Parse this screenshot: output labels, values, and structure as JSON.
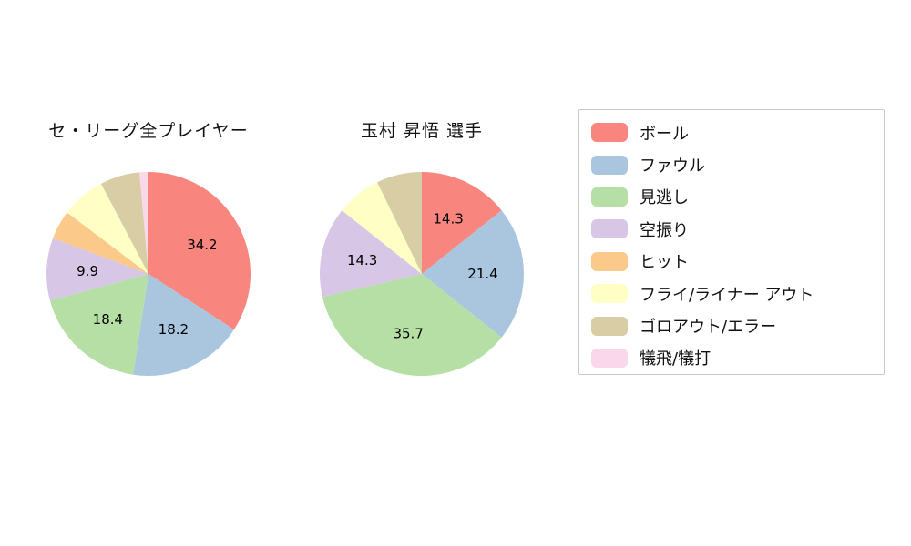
{
  "page": {
    "background_color": "#ffffff"
  },
  "legend": {
    "position": "right",
    "border_color": "#c9c9c9",
    "items": [
      {
        "label": "ボール",
        "color": "#f8867e"
      },
      {
        "label": "ファウル",
        "color": "#a9c6de"
      },
      {
        "label": "見逃し",
        "color": "#b5dfa5"
      },
      {
        "label": "空振り",
        "color": "#d7c6e6"
      },
      {
        "label": "ヒット",
        "color": "#fbc98a"
      },
      {
        "label": "フライ/ライナー アウト",
        "color": "#ffffc5"
      },
      {
        "label": "ゴロアウト/エラー",
        "color": "#d9cda6"
      },
      {
        "label": "犠飛/犠打",
        "color": "#fbd7eb"
      }
    ]
  },
  "chart_data": [
    {
      "type": "pie",
      "title": "セ・リーグ全プレイヤー",
      "categories": [
        "ボール",
        "ファウル",
        "見逃し",
        "空振り",
        "ヒット",
        "フライ/ライナー アウト",
        "ゴロアウト/エラー",
        "犠飛/犠打"
      ],
      "values": [
        34.2,
        18.2,
        18.4,
        9.9,
        4.6,
        7.0,
        6.3,
        1.4
      ],
      "value_labels_shown": [
        "34.2",
        "18.2",
        "18.4",
        "9.9",
        "",
        "",
        "",
        ""
      ],
      "colors": [
        "#f8867e",
        "#a9c6de",
        "#b5dfa5",
        "#d7c6e6",
        "#fbc98a",
        "#ffffc5",
        "#d9cda6",
        "#fbd7eb"
      ],
      "start_angle_deg": 0,
      "direction": "clockwise",
      "label_position": "inside"
    },
    {
      "type": "pie",
      "title": "玉村 昇悟 選手",
      "categories": [
        "ボール",
        "ファウル",
        "見逃し",
        "空振り",
        "ヒット",
        "フライ/ライナー アウト",
        "ゴロアウト/エラー",
        "犠飛/犠打"
      ],
      "values": [
        14.3,
        21.4,
        35.7,
        14.3,
        0,
        7.1,
        7.2,
        0
      ],
      "value_labels_shown": [
        "14.3",
        "21.4",
        "35.7",
        "14.3",
        "",
        "",
        "",
        ""
      ],
      "colors": [
        "#f8867e",
        "#a9c6de",
        "#b5dfa5",
        "#d7c6e6",
        "#fbc98a",
        "#ffffc5",
        "#d9cda6",
        "#fbd7eb"
      ],
      "start_angle_deg": 0,
      "direction": "clockwise",
      "label_position": "inside"
    }
  ]
}
